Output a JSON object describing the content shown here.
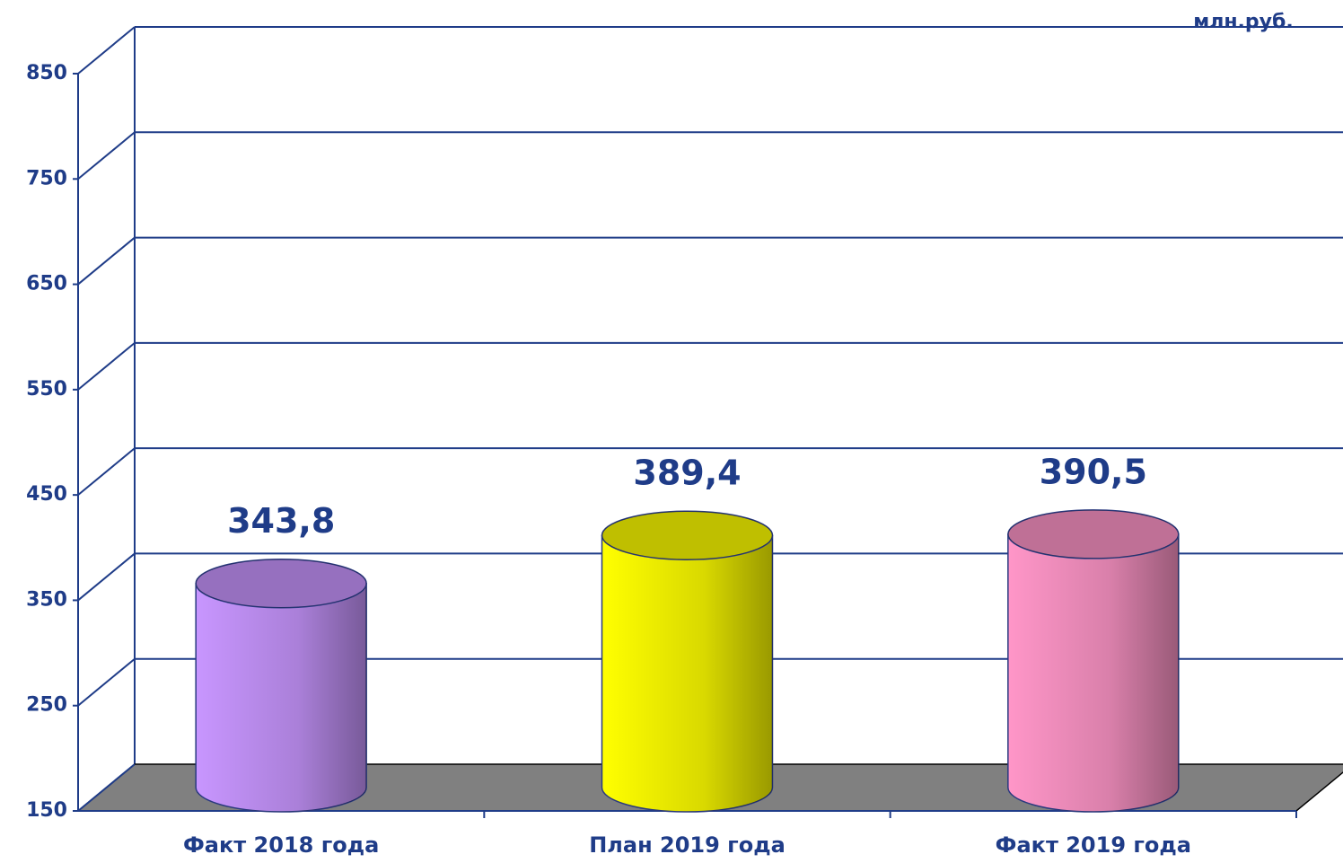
{
  "chart_data": {
    "type": "bar",
    "unit_label": "млн.руб.",
    "categories": [
      "Факт 2018 года",
      "План 2019 года",
      "Факт 2019 года"
    ],
    "values": [
      343.8,
      389.4,
      390.5
    ],
    "value_labels": [
      "343,8",
      "389,4",
      "390,5"
    ],
    "colors": [
      "#c896ff",
      "#ffff00",
      "#ff96c8"
    ],
    "ylim": [
      150,
      850
    ],
    "yticks": [
      150,
      250,
      350,
      450,
      550,
      650,
      750,
      850
    ],
    "grid": true
  }
}
